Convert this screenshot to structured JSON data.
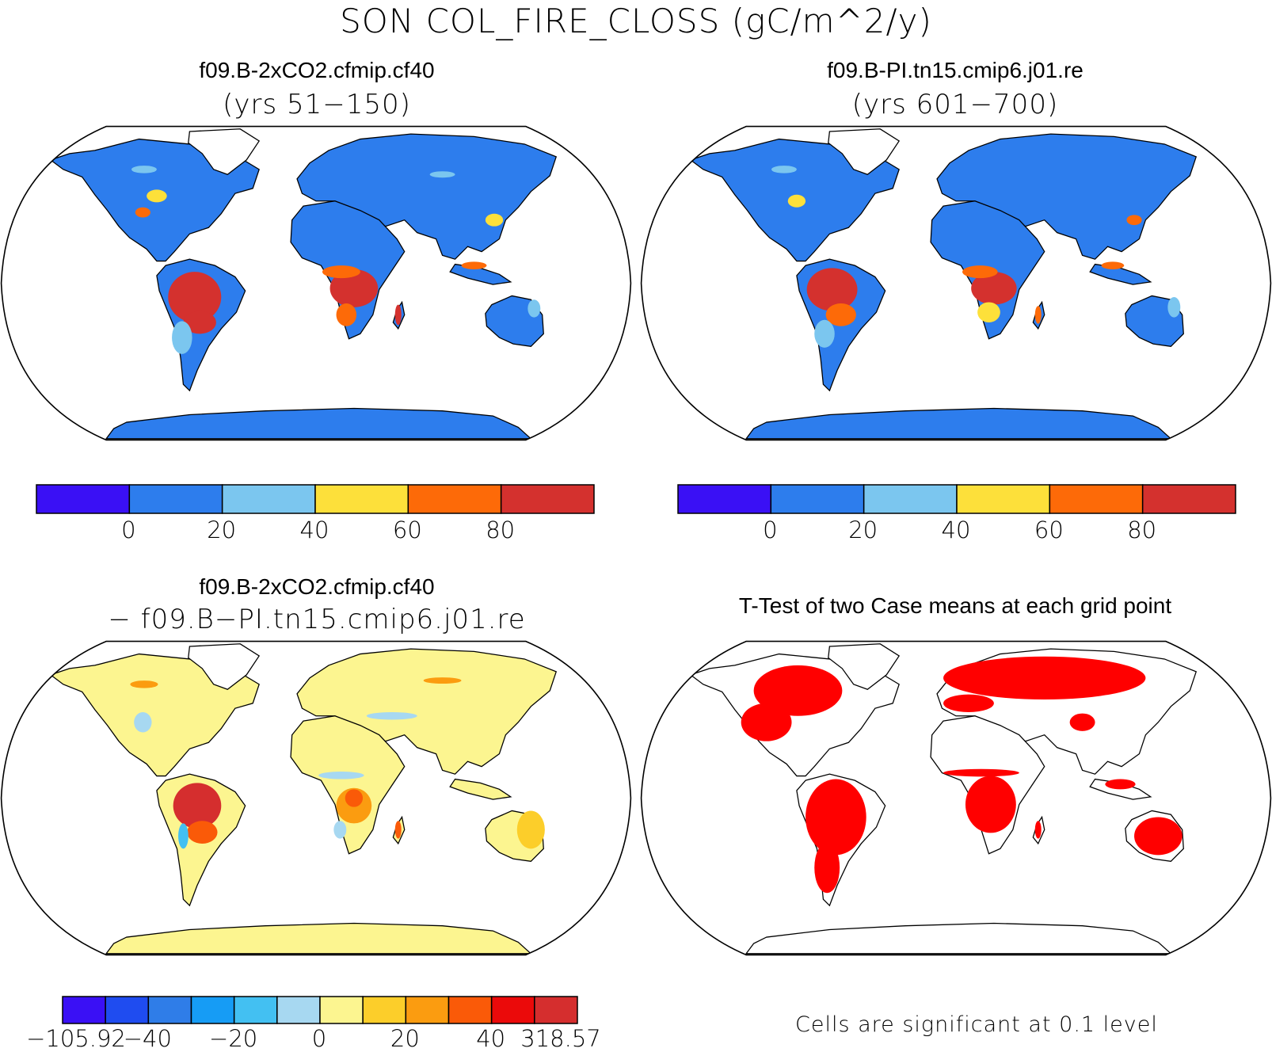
{
  "title": "SON COL_FIRE_CLOSS (gC/m^2/y)",
  "colors": {
    "ocean": "#ffffff",
    "outline": "#000000"
  },
  "panels": [
    {
      "id": "case1",
      "title": "f09.B-2xCO2.cfmip.cf40",
      "subtitle": "(yrs 51−150)",
      "colorbar": {
        "colors": [
          "#3a10f5",
          "#2d7ded",
          "#7bc6ef",
          "#fde03a",
          "#fd6a08",
          "#d4312e"
        ],
        "ticks": [
          "0",
          "20",
          "40",
          "60",
          "80"
        ]
      }
    },
    {
      "id": "case2",
      "title": "f09.B-PI.tn15.cmip6.j01.re",
      "subtitle": "(yrs 601−700)",
      "colorbar": {
        "colors": [
          "#3a10f5",
          "#2d7ded",
          "#7bc6ef",
          "#fde03a",
          "#fd6a08",
          "#d4312e"
        ],
        "ticks": [
          "0",
          "20",
          "40",
          "60",
          "80"
        ]
      }
    },
    {
      "id": "diff",
      "title": "f09.B-2xCO2.cfmip.cf40",
      "subtitle": "− f09.B−PI.tn15.cmip6.j01.re",
      "colorbar": {
        "colors": [
          "#3a10f5",
          "#1f4cf0",
          "#2f7de8",
          "#169cf5",
          "#43c0f2",
          "#a7d8f1",
          "#fcf590",
          "#fcce2a",
          "#fb9c10",
          "#fa5a08",
          "#eb0a0a",
          "#d52e2e"
        ],
        "ticks": [
          "−105.92",
          "−40",
          "−20",
          "0",
          "20",
          "40",
          "318.57"
        ]
      }
    },
    {
      "id": "ttest",
      "title": "T-Test of two Case means at each grid point",
      "note": "Cells are significant at 0.1 level",
      "significant_color": "#ff0000"
    }
  ]
}
